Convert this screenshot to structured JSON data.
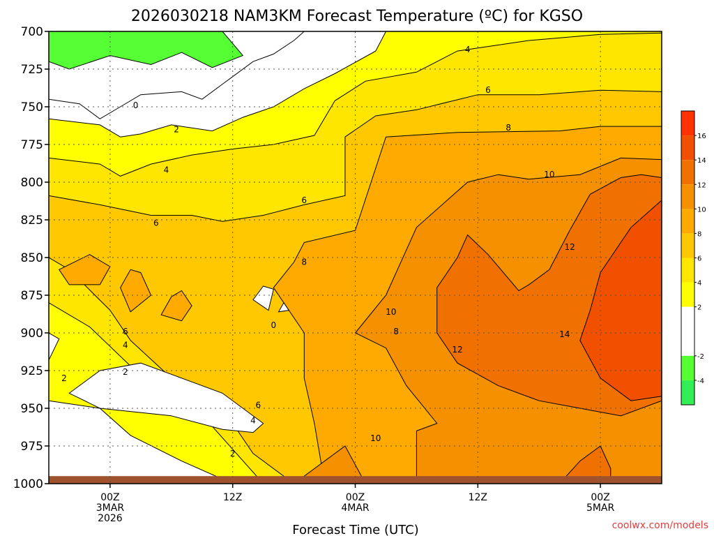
{
  "chart_data": {
    "type": "heatmap",
    "title": "2026030218 NAM3KM Forecast Temperature (ºC) for KGSO",
    "xlabel": "Forecast Time (UTC)",
    "ylabel": "",
    "watermark": "coolwx.com/models",
    "y_axis": {
      "ticks": [
        700,
        725,
        750,
        775,
        800,
        825,
        850,
        875,
        900,
        925,
        950,
        975,
        1000
      ],
      "range": [
        700,
        1000
      ],
      "inverted": true,
      "grid": true
    },
    "x_axis": {
      "range_hours": [
        0,
        60
      ],
      "ticks": [
        {
          "hour": 6,
          "lines": [
            "00Z",
            "3MAR",
            "2026"
          ]
        },
        {
          "hour": 18,
          "lines": [
            "12Z"
          ]
        },
        {
          "hour": 30,
          "lines": [
            "00Z",
            "4MAR"
          ]
        },
        {
          "hour": 42,
          "lines": [
            "12Z"
          ]
        },
        {
          "hour": 54,
          "lines": [
            "00Z",
            "5MAR"
          ]
        }
      ],
      "grid": true
    },
    "colorbar": {
      "placement": "right",
      "labels": [
        "16",
        "14",
        "12",
        "10",
        "8",
        "6",
        "4",
        "2",
        "-2",
        "-4"
      ],
      "bins": [
        {
          "min": -6,
          "max": -4,
          "color": "#33ee55"
        },
        {
          "min": -4,
          "max": -2,
          "color": "#55ff33"
        },
        {
          "min": -2,
          "max": 0,
          "color": "#ffffff"
        },
        {
          "min": 0,
          "max": 2,
          "color": "#ffffff"
        },
        {
          "min": 2,
          "max": 4,
          "color": "#ffff00"
        },
        {
          "min": 4,
          "max": 6,
          "color": "#ffe600"
        },
        {
          "min": 6,
          "max": 8,
          "color": "#ffc800"
        },
        {
          "min": 8,
          "max": 10,
          "color": "#ffaa00"
        },
        {
          "min": 10,
          "max": 12,
          "color": "#f59000"
        },
        {
          "min": 12,
          "max": 14,
          "color": "#f07000"
        },
        {
          "min": 14,
          "max": 16,
          "color": "#f05000"
        },
        {
          "min": 16,
          "max": 18,
          "color": "#ff3300"
        }
      ]
    },
    "ground_color": "#a0522d",
    "contour_labels": [
      {
        "text": "4",
        "hour": 41,
        "p": 712
      },
      {
        "text": "6",
        "hour": 43,
        "p": 739
      },
      {
        "text": "8",
        "hour": 45,
        "p": 764
      },
      {
        "text": "10",
        "hour": 49,
        "p": 795
      },
      {
        "text": "12",
        "hour": 51,
        "p": 843
      },
      {
        "text": "14",
        "hour": 50.5,
        "p": 901
      },
      {
        "text": "0",
        "hour": 8.5,
        "p": 749
      },
      {
        "text": "2",
        "hour": 12.5,
        "p": 765
      },
      {
        "text": "4",
        "hour": 11.5,
        "p": 792
      },
      {
        "text": "6",
        "hour": 10.5,
        "p": 827
      },
      {
        "text": "6",
        "hour": 25,
        "p": 812
      },
      {
        "text": "8",
        "hour": 25,
        "p": 853
      },
      {
        "text": "0",
        "hour": 22,
        "p": 895
      },
      {
        "text": "10",
        "hour": 33.5,
        "p": 886
      },
      {
        "text": "8",
        "hour": 34,
        "p": 899
      },
      {
        "text": "12",
        "hour": 40,
        "p": 911
      },
      {
        "text": "6",
        "hour": 7.5,
        "p": 899
      },
      {
        "text": "4",
        "hour": 7.5,
        "p": 908
      },
      {
        "text": "2",
        "hour": 7.5,
        "p": 926
      },
      {
        "text": "2",
        "hour": 1.5,
        "p": 930
      },
      {
        "text": "6",
        "hour": 20.5,
        "p": 948
      },
      {
        "text": "4",
        "hour": 20,
        "p": 958
      },
      {
        "text": "2",
        "hour": 18,
        "p": 980
      },
      {
        "text": "10",
        "hour": 32,
        "p": 970
      }
    ],
    "regions": [
      {
        "temp": 1,
        "points": [
          [
            0,
            700
          ],
          [
            36,
            700
          ],
          [
            36,
            1000
          ],
          [
            0,
            1000
          ]
        ]
      },
      {
        "temp": 3,
        "points": [
          [
            0,
            758
          ],
          [
            5,
            762
          ],
          [
            7,
            770
          ],
          [
            9,
            768
          ],
          [
            12,
            762
          ],
          [
            16,
            766
          ],
          [
            19,
            757
          ],
          [
            22,
            750
          ],
          [
            25,
            738
          ],
          [
            28,
            728
          ],
          [
            32,
            713
          ],
          [
            33,
            700
          ],
          [
            60,
            700
          ],
          [
            60,
            1000
          ],
          [
            18,
            1000
          ],
          [
            13,
            985
          ],
          [
            8,
            968
          ],
          [
            5,
            950
          ],
          [
            0,
            945
          ]
        ]
      },
      {
        "temp": 5,
        "points": [
          [
            0,
            784
          ],
          [
            5,
            788
          ],
          [
            7,
            796
          ],
          [
            10,
            788
          ],
          [
            14,
            782
          ],
          [
            18,
            778
          ],
          [
            22,
            775
          ],
          [
            26,
            769
          ],
          [
            28,
            746
          ],
          [
            31,
            733
          ],
          [
            36,
            727
          ],
          [
            40,
            713
          ],
          [
            47,
            706
          ],
          [
            54,
            702
          ],
          [
            60,
            701
          ],
          [
            60,
            1000
          ],
          [
            21,
            1000
          ],
          [
            16,
            962
          ],
          [
            12,
            945
          ],
          [
            8,
            922
          ],
          [
            4,
            896
          ],
          [
            0,
            880
          ]
        ]
      },
      {
        "temp": 7,
        "points": [
          [
            0,
            809
          ],
          [
            5,
            815
          ],
          [
            10,
            822
          ],
          [
            14,
            822
          ],
          [
            17,
            826
          ],
          [
            21,
            822
          ],
          [
            25,
            815
          ],
          [
            29,
            809
          ],
          [
            29,
            770
          ],
          [
            32,
            756
          ],
          [
            36,
            752
          ],
          [
            42,
            742
          ],
          [
            48,
            742
          ],
          [
            54,
            739
          ],
          [
            60,
            740
          ],
          [
            60,
            1000
          ],
          [
            24,
            1000
          ],
          [
            20,
            980
          ],
          [
            17,
            950
          ],
          [
            12,
            930
          ],
          [
            8,
            905
          ],
          [
            6,
            885
          ],
          [
            2,
            858
          ],
          [
            0,
            850
          ]
        ]
      },
      {
        "temp": 9,
        "points": [
          [
            24,
            853
          ],
          [
            25,
            840
          ],
          [
            30,
            832
          ],
          [
            33,
            770
          ],
          [
            40,
            767
          ],
          [
            50,
            766
          ],
          [
            54,
            763
          ],
          [
            60,
            763
          ],
          [
            60,
            1000
          ],
          [
            27,
            1000
          ],
          [
            26,
            960
          ],
          [
            25,
            930
          ],
          [
            25,
            900
          ],
          [
            22,
            870
          ]
        ]
      },
      {
        "temp": 11,
        "points": [
          [
            33,
            875
          ],
          [
            36,
            830
          ],
          [
            41,
            800
          ],
          [
            44,
            795
          ],
          [
            47,
            798
          ],
          [
            52,
            795
          ],
          [
            56,
            784
          ],
          [
            60,
            785
          ],
          [
            60,
            1000
          ],
          [
            36,
            1000
          ],
          [
            36,
            965
          ],
          [
            38,
            960
          ],
          [
            35,
            935
          ],
          [
            33,
            910
          ],
          [
            30,
            900
          ]
        ]
      },
      {
        "temp": 13,
        "points": [
          [
            38,
            870
          ],
          [
            40,
            850
          ],
          [
            41,
            835
          ],
          [
            43,
            848
          ],
          [
            45,
            864
          ],
          [
            46,
            872
          ],
          [
            47,
            868
          ],
          [
            49,
            858
          ],
          [
            51,
            832
          ],
          [
            53,
            808
          ],
          [
            56,
            797
          ],
          [
            58,
            795
          ],
          [
            60,
            797
          ],
          [
            60,
            945
          ],
          [
            56,
            955
          ],
          [
            52,
            950
          ],
          [
            48,
            945
          ],
          [
            44,
            935
          ],
          [
            40,
            920
          ],
          [
            38,
            900
          ]
        ]
      },
      {
        "temp": 15,
        "points": [
          [
            54,
            860
          ],
          [
            57,
            830
          ],
          [
            60,
            812
          ],
          [
            60,
            942
          ],
          [
            57,
            945
          ],
          [
            54,
            930
          ],
          [
            52,
            905
          ],
          [
            53,
            885
          ]
        ]
      },
      {
        "temp": 13,
        "points": [
          [
            50,
            1000
          ],
          [
            52,
            985
          ],
          [
            54,
            975
          ],
          [
            55,
            990
          ],
          [
            55,
            1000
          ]
        ]
      },
      {
        "temp": 11,
        "points": [
          [
            24,
            1000
          ],
          [
            29,
            975
          ],
          [
            31,
            1000
          ]
        ]
      },
      {
        "temp": 0,
        "points": [
          [
            0,
            745
          ],
          [
            3,
            748
          ],
          [
            5,
            758
          ],
          [
            7,
            750
          ],
          [
            9,
            742
          ],
          [
            13,
            740
          ],
          [
            15,
            745
          ],
          [
            17,
            735
          ],
          [
            18,
            730
          ],
          [
            20,
            720
          ],
          [
            22,
            715
          ],
          [
            24,
            706
          ],
          [
            25,
            700
          ],
          [
            0,
            700
          ]
        ]
      },
      {
        "temp": -3,
        "points": [
          [
            0,
            700
          ],
          [
            17,
            700
          ],
          [
            19,
            716
          ],
          [
            16,
            724
          ],
          [
            13,
            714
          ],
          [
            10,
            722
          ],
          [
            6,
            716
          ],
          [
            2,
            725
          ],
          [
            0,
            720
          ]
        ]
      },
      {
        "temp": 0,
        "points": [
          [
            12,
            955
          ],
          [
            17,
            964
          ],
          [
            20,
            966
          ],
          [
            21,
            960
          ],
          [
            17,
            940
          ],
          [
            13,
            930
          ],
          [
            9,
            920
          ],
          [
            5,
            925
          ],
          [
            2,
            940
          ],
          [
            5,
            950
          ]
        ]
      },
      {
        "temp": 0,
        "points": [
          [
            0,
            900
          ],
          [
            1,
            904
          ],
          [
            0,
            918
          ]
        ]
      },
      {
        "temp": 9,
        "points": [
          [
            1,
            858
          ],
          [
            4,
            848
          ],
          [
            6,
            856
          ],
          [
            5,
            868
          ],
          [
            2,
            868
          ]
        ]
      },
      {
        "temp": 9,
        "points": [
          [
            7,
            870
          ],
          [
            8,
            858
          ],
          [
            9,
            860
          ],
          [
            10,
            875
          ],
          [
            8,
            886
          ]
        ]
      },
      {
        "temp": 9,
        "points": [
          [
            11,
            888
          ],
          [
            12,
            876
          ],
          [
            13,
            872
          ],
          [
            14,
            882
          ],
          [
            13,
            892
          ]
        ]
      },
      {
        "temp": 0,
        "points": [
          [
            20,
            878
          ],
          [
            21,
            869
          ],
          [
            22,
            871
          ],
          [
            21.5,
            885
          ]
        ]
      },
      {
        "temp": 0,
        "points": [
          [
            22.5,
            886
          ],
          [
            23,
            880
          ],
          [
            23.5,
            885
          ]
        ]
      }
    ]
  }
}
